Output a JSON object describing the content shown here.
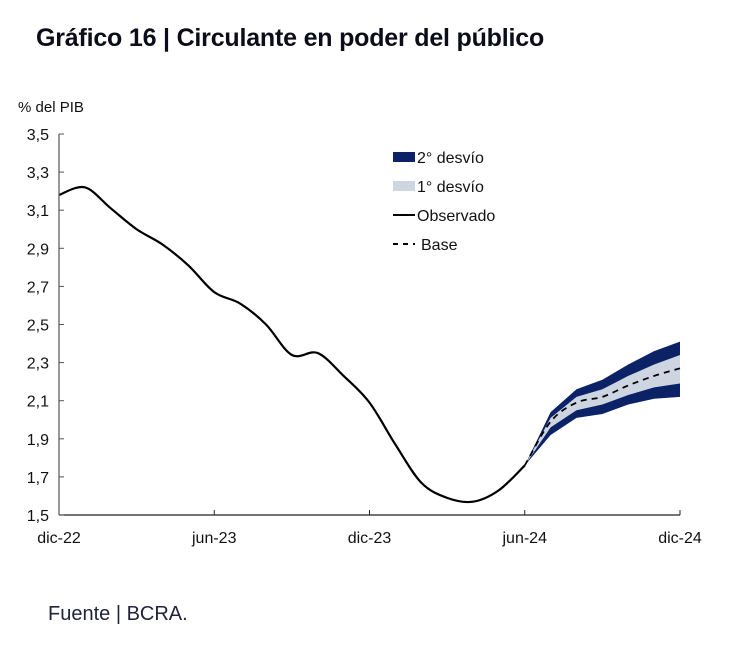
{
  "title": "Gráfico 16 | Circulante en poder del público",
  "source": "Fuente | BCRA.",
  "colors": {
    "band_2sd": "#0b2267",
    "band_1sd": "#cdd5e0",
    "observed": "#000000",
    "base": "#000000",
    "axis": "#555555"
  },
  "chart_data": {
    "type": "line",
    "title": "Circulante en poder del público",
    "ylabel": "% del PIB",
    "xlabel": "",
    "ylim": [
      1.5,
      3.5
    ],
    "yticks": [
      "3,5",
      "3,3",
      "3,1",
      "2,9",
      "2,7",
      "2,5",
      "2,3",
      "2,1",
      "1,9",
      "1,7",
      "1,5"
    ],
    "ytick_values": [
      3.5,
      3.3,
      3.1,
      2.9,
      2.7,
      2.5,
      2.3,
      2.1,
      1.9,
      1.7,
      1.5
    ],
    "xlim_months": [
      0,
      24
    ],
    "xticks": [
      {
        "label": "dic-22",
        "month": 0
      },
      {
        "label": "jun-23",
        "month": 6
      },
      {
        "label": "dic-23",
        "month": 12
      },
      {
        "label": "jun-24",
        "month": 18
      },
      {
        "label": "dic-24",
        "month": 24
      }
    ],
    "grid": false,
    "legend_position": "top-right",
    "legend": [
      {
        "key": "band_2sd",
        "label": "2° desvío",
        "style": "dark-box"
      },
      {
        "key": "band_1sd",
        "label": "1° desvío",
        "style": "light-box"
      },
      {
        "key": "observed",
        "label": "Observado",
        "style": "solid-line"
      },
      {
        "key": "base",
        "label": "Base",
        "style": "dashed-line"
      }
    ],
    "series": [
      {
        "name": "Observado",
        "months": [
          0,
          1,
          2,
          3,
          4,
          5,
          6,
          7,
          8,
          9,
          10,
          11,
          12,
          13,
          14,
          15,
          16,
          17,
          18
        ],
        "values": [
          3.18,
          3.22,
          3.11,
          3.0,
          2.92,
          2.81,
          2.67,
          2.61,
          2.5,
          2.34,
          2.35,
          2.23,
          2.09,
          1.87,
          1.67,
          1.59,
          1.57,
          1.63,
          1.76
        ]
      },
      {
        "name": "Base",
        "months": [
          18,
          19,
          20,
          21,
          22,
          23,
          24
        ],
        "values": [
          1.76,
          1.99,
          2.09,
          2.12,
          2.18,
          2.23,
          2.27
        ]
      }
    ],
    "bands": {
      "months": [
        18,
        19,
        20,
        21,
        22,
        23,
        24
      ],
      "sd2_upper": [
        1.76,
        2.04,
        2.16,
        2.21,
        2.29,
        2.36,
        2.41
      ],
      "sd1_upper": [
        1.76,
        2.01,
        2.12,
        2.16,
        2.23,
        2.29,
        2.34
      ],
      "sd1_lower": [
        1.76,
        1.96,
        2.05,
        2.08,
        2.13,
        2.17,
        2.19
      ],
      "sd2_lower": [
        1.76,
        1.92,
        2.01,
        2.03,
        2.08,
        2.11,
        2.12
      ]
    }
  }
}
